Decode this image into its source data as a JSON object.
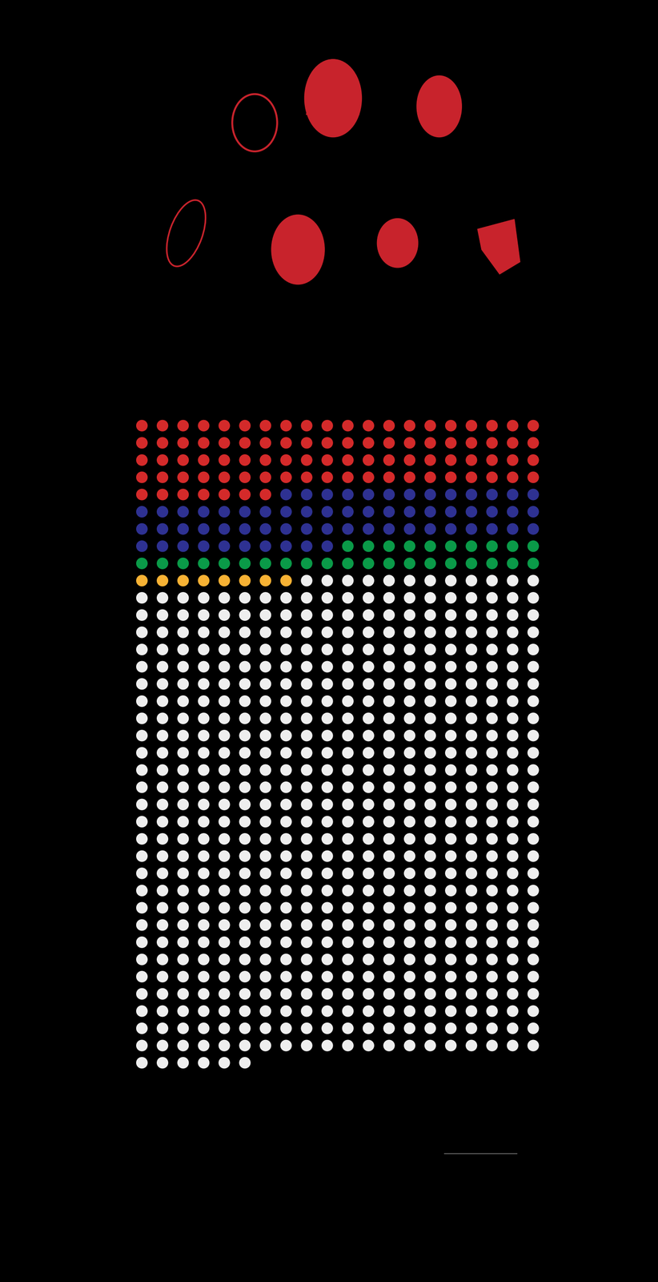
{
  "chart_data": {
    "type": "waffle",
    "values": [
      87,
      63,
      30,
      8,
      558
    ],
    "colors": [
      "#d42a2a",
      "#2e3192",
      "#0a9a48",
      "#f7b234",
      "#eeeeee"
    ],
    "tick_labels": false
  }
}
